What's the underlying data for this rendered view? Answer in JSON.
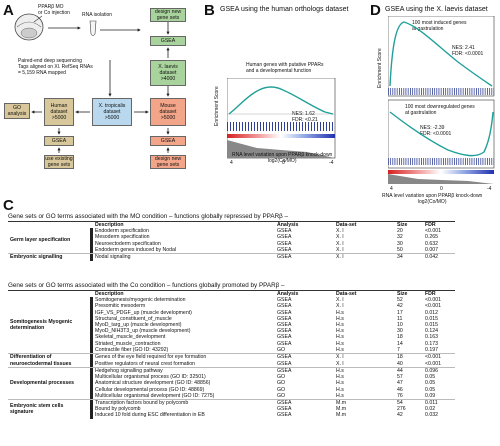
{
  "panel_labels": {
    "a": "A",
    "b": "B",
    "c": "C",
    "d": "D"
  },
  "panel_a": {
    "embryo_label": "PPARβ MO\nor Co injection",
    "rna_isolation": "RNA isolation",
    "sequencing": "Paired-end deep sequencing\nTags aligned on Xl. RefSeq RNAs\n= 5,159 RNA mapped",
    "boxes": {
      "design_top": "design new\ngene sets",
      "gsea_top": "GSEA",
      "xlaevis": "X. laevis\ndataset\n>4000",
      "go_analysis": "GO\nanalysis",
      "human": "Human\ndataset\n>5000",
      "xtropicalis": "X. tropicalis\ndataset\n>5000",
      "mouse": "Mouse\ndataset\n>5000",
      "gsea_left": "GSEA",
      "use_existing": "use existing\ngene sets",
      "gsea_right": "GSEA",
      "design_bottom": "design new\ngene sets"
    }
  },
  "panel_b": {
    "title": "GSEA using the human orthologs dataset",
    "annotation": "Human genes with putative PPARs\nand a developmental function",
    "stats": "NES: 1.62\nFDR: <0.21",
    "ylabel": "Enrichment Score",
    "xlabel": "RNA level variation upon PPARβ knock-down\nlog2(Co/MO)",
    "x_ticks": [
      "4",
      "0",
      "-4"
    ]
  },
  "panel_d": {
    "title": "GSEA using the X. laevis dataset",
    "top_annotation": "100 most induced genes\nat gastrulation",
    "top_stats": "NES: 2.41\nFDR: <0.0001",
    "bottom_annotation": "100 most downregulated genes\nat gastrulation",
    "bottom_stats": "NES: -2.39\nFDR: <0.0001",
    "ylabel": "Enrichment Score",
    "xlabel": "RNA level variation upon PPARβ knock-down\nlog2(Co/MO)",
    "x_ticks": [
      "4",
      "0",
      "-4"
    ]
  },
  "panel_c": {
    "section1_title": "Gene sets or GO terms associated with the MO condition – functions globally repressed by PPARβ –",
    "section2_title": "Gene sets or GO terms associated with the Co condition – functions globally promoted by PPARβ –",
    "headers": {
      "description": "Description",
      "analysis": "Analysis",
      "dataset": "Data-set",
      "size": "Size",
      "fdr": "FDR"
    },
    "table1_groups": [
      {
        "group": "Germ layer specification",
        "rows": [
          [
            "Endoderm specification",
            "GSEA",
            "X. l",
            "20",
            "<0.001"
          ],
          [
            "Mesoderm specification",
            "GSEA",
            "X. l",
            "32",
            "0.265"
          ],
          [
            "Neuroectoderm specification",
            "GSEA",
            "X. l",
            "30",
            "0.632"
          ],
          [
            "Endoderm genes induced by Nodal",
            "GSEA",
            "X. l",
            "50",
            "0.007"
          ]
        ]
      },
      {
        "group": "Embryonic signalling",
        "rows": [
          [
            "Nodal signaling",
            "GSEA",
            "X. l",
            "34",
            "0.042"
          ]
        ]
      }
    ],
    "table2_groups": [
      {
        "group": "Somitogenesis\nMyogenic determination",
        "rows": [
          [
            "Somitogenesis/myogenic determination",
            "GSEA",
            "X. l",
            "52",
            "<0.001"
          ],
          [
            "Presomitic mesoderm",
            "GSEA",
            "X. l",
            "42",
            "<0.001"
          ],
          [
            "IGF_VS_PDGF_up (muscle development)",
            "GSEA",
            "H.s",
            "17",
            "0.012"
          ],
          [
            "Structural_constituent_of_muscle",
            "GSEA",
            "H.s",
            "11",
            "0.015"
          ],
          [
            "MyoD_targ_up (muscle development)",
            "GSEA",
            "H.s",
            "10",
            "0.015"
          ],
          [
            "MyoD_NIH3T3_up (muscle development)",
            "GSEA",
            "H.s",
            "30",
            "0.124"
          ],
          [
            "Skeletal_muscle_development",
            "GSEA",
            "H.s",
            "18",
            "0.163"
          ],
          [
            "Striated_muscle_contraction",
            "GSEA",
            "H.s",
            "14",
            "0.173"
          ],
          [
            "Contractile fiber (GO ID: 43292)",
            "GO",
            "H.s",
            "7",
            "0.197"
          ]
        ]
      },
      {
        "group": "Differentiation of\nneuroectodermal tissues",
        "rows": [
          [
            "Genes of the eye field required for eye formation",
            "GSEA",
            "X. l",
            "18",
            "<0.001"
          ],
          [
            "Positive regulators of neural crest formation",
            "GSEA",
            "X. l",
            "40",
            "<0.001"
          ]
        ]
      },
      {
        "group": "Developmental\nprocesses",
        "rows": [
          [
            "Hedgehog signalling pathway",
            "GSEA",
            "H.s",
            "44",
            "0.096"
          ],
          [
            "Multicellular organismal process (GO ID: 32501)",
            "GO",
            "H.s",
            "57",
            "0.05"
          ],
          [
            "Anatomical structure development (GO ID: 48856)",
            "GO",
            "H.s",
            "47",
            "0.05"
          ],
          [
            "Cellular developmental process (GO ID: 48869)",
            "GO",
            "H.s",
            "46",
            "0.05"
          ],
          [
            "Multicellular organismal development (GO ID: 7275)",
            "GO",
            "H.s",
            "76",
            "0.09"
          ]
        ]
      },
      {
        "group": "Embryonic stem cells\nsignature",
        "rows": [
          [
            "Transcription factors bound by polycomb",
            "GSEA",
            "M.m",
            "54",
            "0.011"
          ],
          [
            "Bound by polycomb",
            "GSEA",
            "M.m",
            "276",
            "0.02"
          ],
          [
            "Induced 10 fold during ESC differentiation in EB",
            "GSEA",
            "M.m",
            "42",
            "0.032"
          ]
        ]
      }
    ]
  }
}
